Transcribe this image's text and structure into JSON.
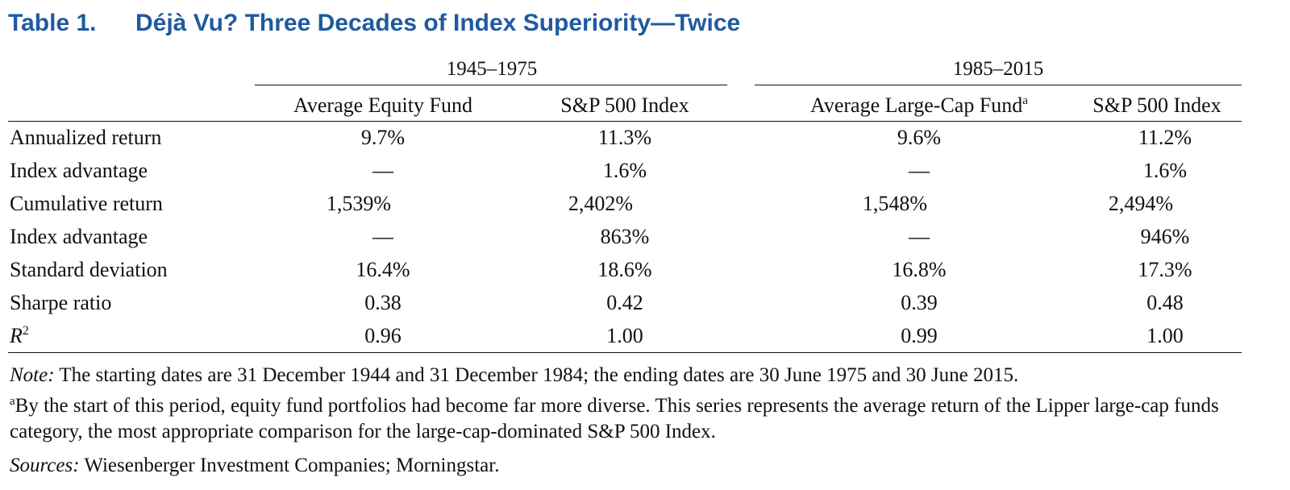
{
  "title": {
    "number": "Table 1.",
    "text": "Déjà Vu? Three Decades of Index Superiority—Twice"
  },
  "groups": [
    "1945–1975",
    "1985–2015"
  ],
  "columns": [
    {
      "label": "Average Equity Fund",
      "sup": ""
    },
    {
      "label": "S&P 500 Index",
      "sup": ""
    },
    {
      "label": "Average Large-Cap Fund",
      "sup": "a"
    },
    {
      "label": "S&P 500 Index",
      "sup": ""
    }
  ],
  "rows": [
    {
      "label": "Annualized return",
      "values": [
        "9.7%",
        "11.3%",
        "9.6%",
        "11.2%"
      ]
    },
    {
      "label": "Index advantage",
      "values": [
        "—",
        "1.6%",
        "—",
        "1.6%"
      ]
    },
    {
      "label": "Cumulative return",
      "values": [
        "1,539%",
        "2,402%",
        "1,548%",
        "2,494%"
      ]
    },
    {
      "label": "Index advantage",
      "values": [
        "—",
        "863%",
        "—",
        "946%"
      ]
    },
    {
      "label": "Standard deviation",
      "values": [
        "16.4%",
        "18.6%",
        "16.8%",
        "17.3%"
      ]
    },
    {
      "label": "Sharpe ratio",
      "values": [
        "0.38",
        "0.42",
        "0.39",
        "0.48"
      ]
    },
    {
      "label": "R",
      "label_sup": "2",
      "values": [
        "0.96",
        "1.00",
        "0.99",
        "1.00"
      ]
    }
  ],
  "notes": {
    "note_label": "Note:",
    "note_text": " The starting dates are 31 December 1944 and 31 December 1984; the ending dates are 30 June 1975 and 30 June 2015.",
    "footnote_marker": "a",
    "footnote_text": "By the start of this period, equity fund portfolios had become far more diverse. This series represents the average return of the Lipper large-cap funds category, the most appropriate comparison for the large-cap-dominated S&P 500 Index.",
    "sources_label": "Sources:",
    "sources_text": " Wiesenberger Investment Companies; Morningstar."
  }
}
